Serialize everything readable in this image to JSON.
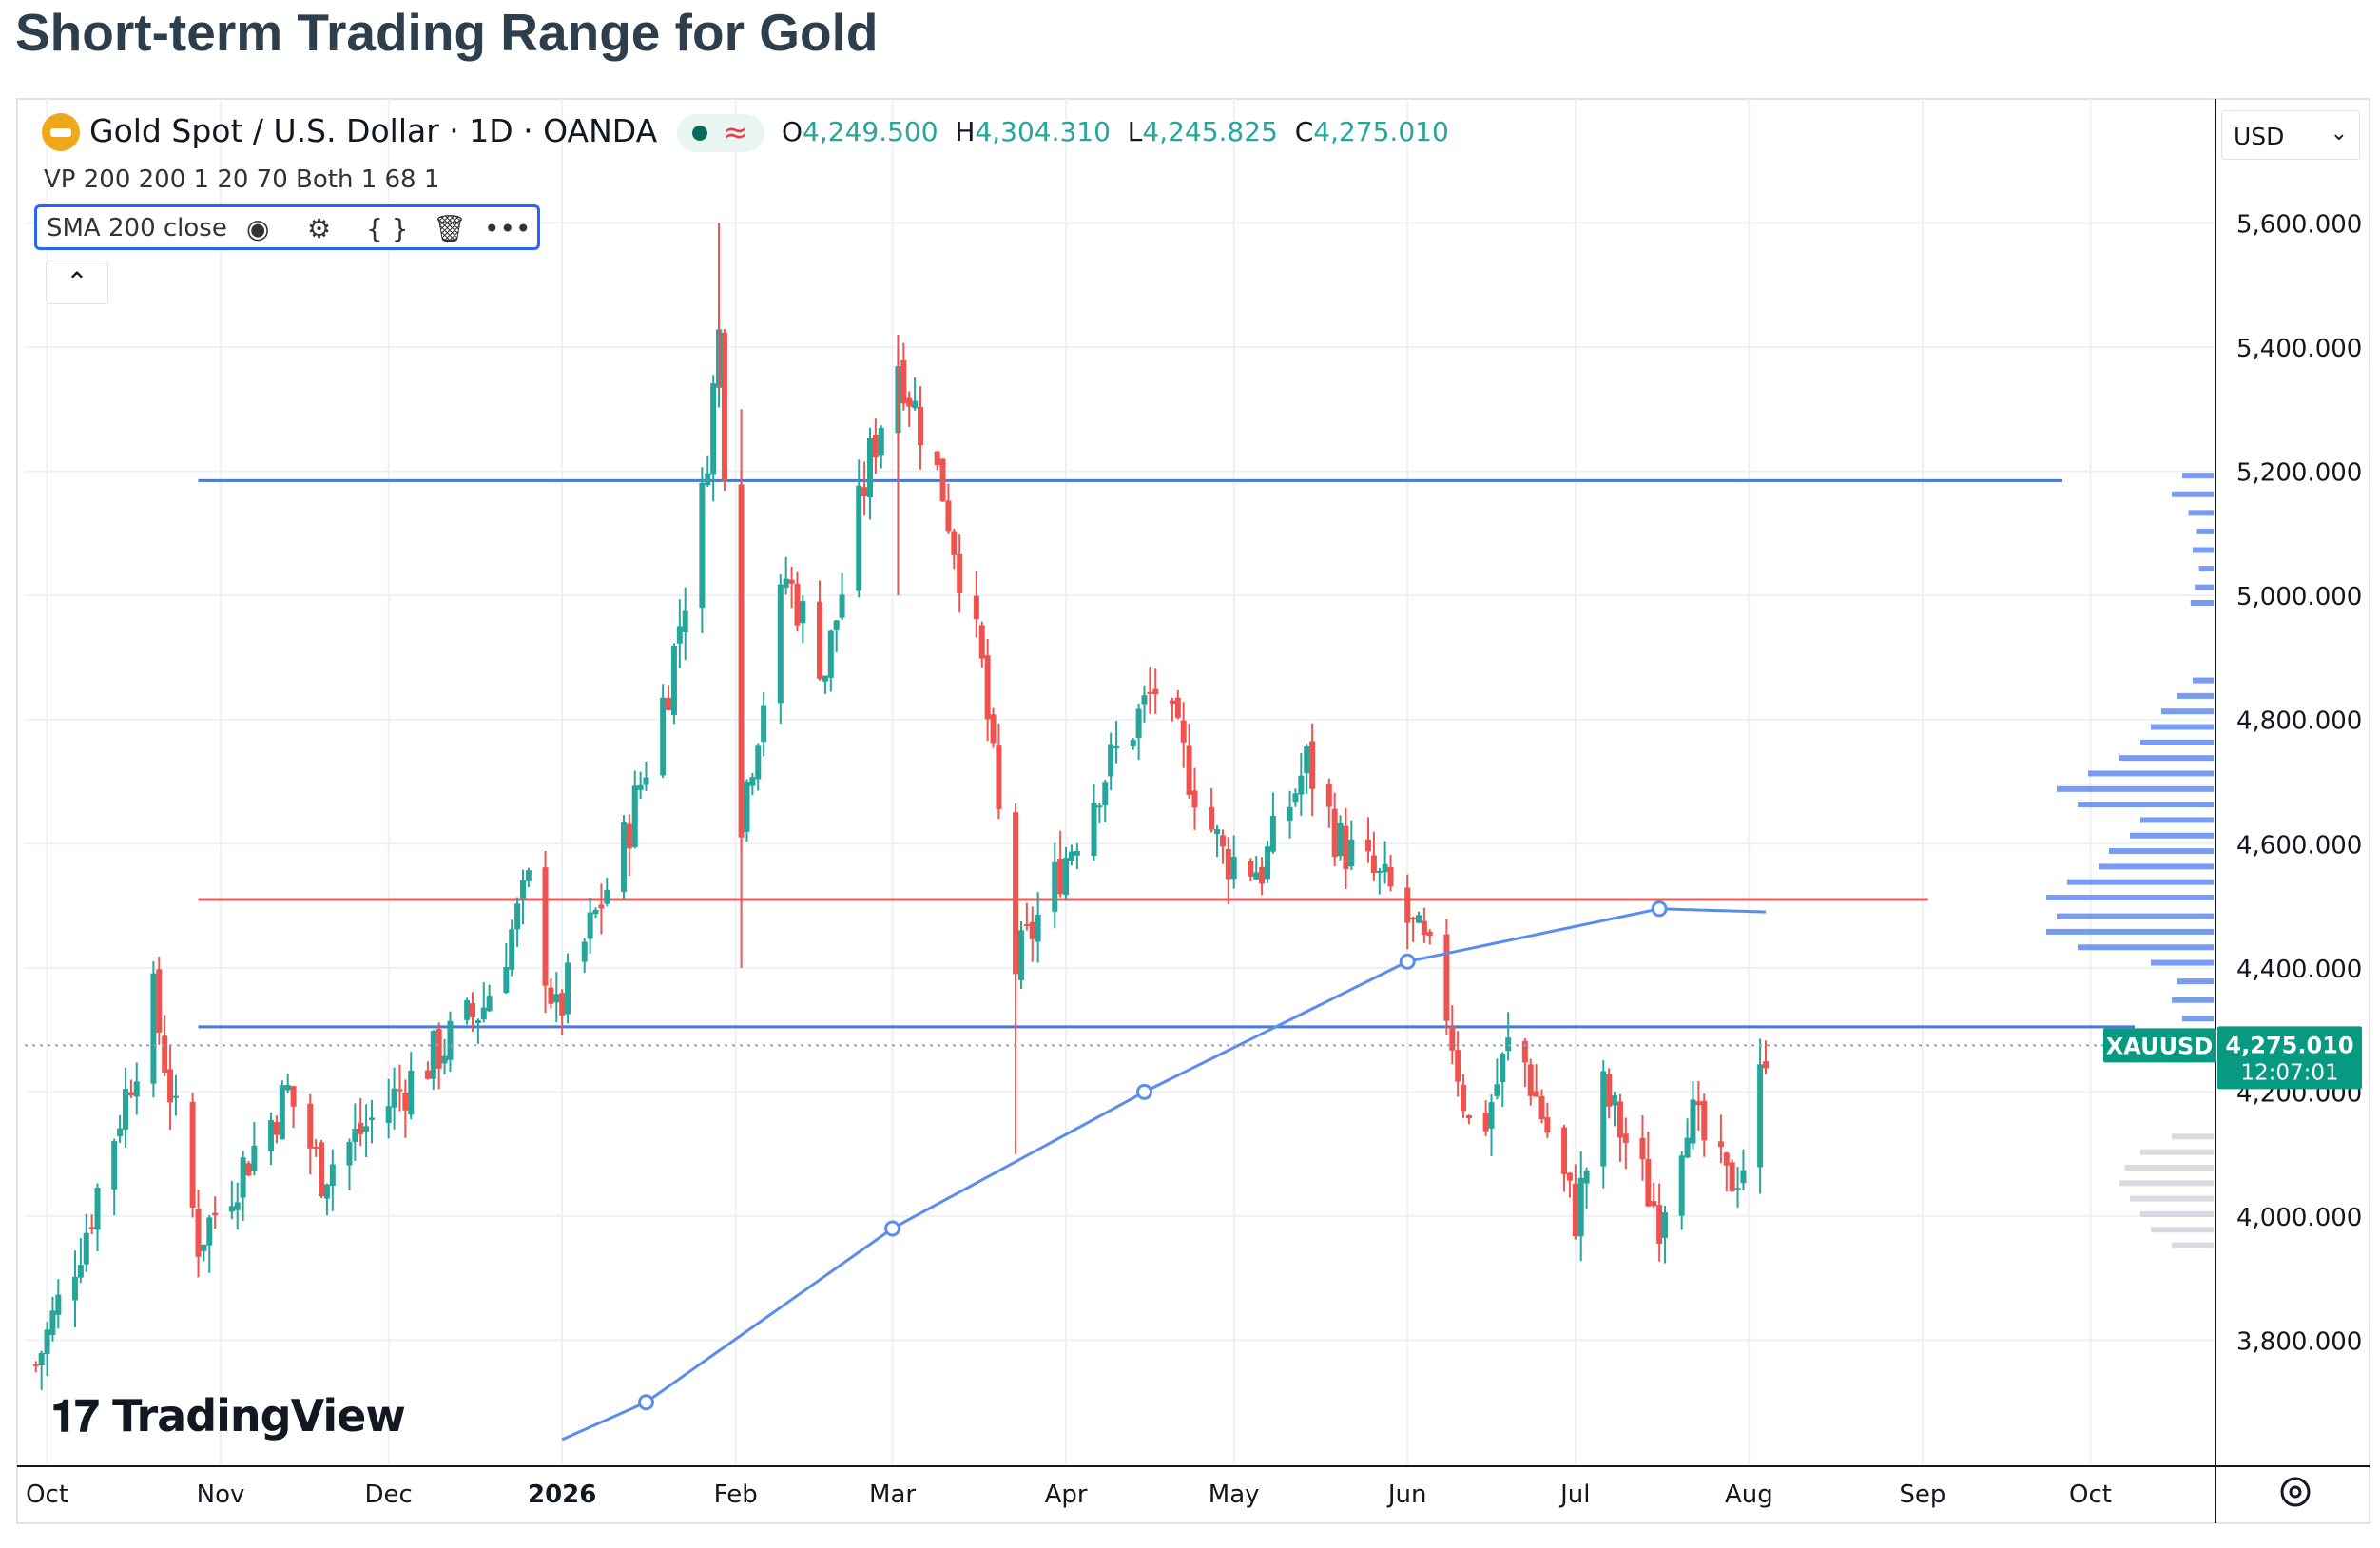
{
  "page": {
    "title": "Short-term Trading Range for Gold"
  },
  "legend": {
    "symbol": "Gold Spot / U.S. Dollar · 1D · OANDA",
    "ohlc": [
      {
        "key": "O",
        "value": "4,249.500"
      },
      {
        "key": "H",
        "value": "4,304.310"
      },
      {
        "key": "L",
        "value": "4,245.825"
      },
      {
        "key": "C",
        "value": "4,275.010"
      }
    ],
    "vp": "VP 200 200 1 20 70 Both 1 68 1",
    "sma": "SMA 200 close"
  },
  "currency": "USD",
  "brand": "TradingView",
  "price_tag": {
    "symbol": "XAUUSD",
    "price": "4,275.010",
    "countdown": "12:07:01"
  },
  "colors": {
    "up": "#26a69a",
    "down": "#ef5350",
    "sma": "#5b8def",
    "level": "#4a78d6",
    "pivot": "#e45b5b",
    "volume_profile": "#4b7bf0"
  },
  "chart_data": {
    "type": "candlestick",
    "title": "Gold Spot / U.S. Dollar · 1D · OANDA",
    "y_ticks": [
      3800,
      4000,
      4200,
      4400,
      4600,
      4800,
      5000,
      5200,
      5400,
      5600
    ],
    "y_tick_labels": [
      "3,800.000",
      "4,000.000",
      "4,200.000",
      "4,400.000",
      "4,600.000",
      "4,800.000",
      "5,000.000",
      "5,200.000",
      "5,400.000",
      "5,600.000"
    ],
    "ylim": [
      3600,
      5800
    ],
    "x_ticks": [
      "Oct",
      "Nov",
      "Dec",
      "2026",
      "Feb",
      "Mar",
      "Apr",
      "May",
      "Jun",
      "Jul",
      "Aug",
      "Sep",
      "Oct"
    ],
    "x_tick_dates": [
      "2025-10-01",
      "2025-11-01",
      "2025-12-01",
      "2026-01-01",
      "2026-02-01",
      "2026-03-01",
      "2026-04-01",
      "2026-05-01",
      "2026-06-01",
      "2026-07-01",
      "2026-08-01",
      "2026-09-01",
      "2026-10-01"
    ],
    "xlim": [
      "2025-09-27",
      "2026-10-23"
    ],
    "candles_approx": [
      [
        "2025-09-29",
        3760
      ],
      [
        "2025-10-08",
        3980
      ],
      [
        "2025-10-20",
        4350
      ],
      [
        "2025-10-28",
        3960
      ],
      [
        "2025-11-13",
        4200
      ],
      [
        "2025-11-19",
        4070
      ],
      [
        "2025-12-05",
        4220
      ],
      [
        "2025-12-18",
        4340
      ],
      [
        "2025-12-26",
        4530
      ],
      [
        "2025-12-31",
        4320
      ],
      [
        "2026-01-12",
        4600
      ],
      [
        "2026-01-20",
        4860
      ],
      [
        "2026-01-26",
        5150
      ],
      [
        "2026-01-29",
        5420
      ],
      [
        "2026-02-02",
        4650
      ],
      [
        "2026-02-10",
        5030
      ],
      [
        "2026-02-17",
        4880
      ],
      [
        "2026-02-25",
        5220
      ],
      [
        "2026-03-02",
        5380
      ],
      [
        "2026-03-10",
        5170
      ],
      [
        "2026-03-17",
        4880
      ],
      [
        "2026-03-23",
        4400
      ],
      [
        "2026-04-07",
        4700
      ],
      [
        "2026-04-17",
        4850
      ],
      [
        "2026-04-29",
        4580
      ],
      [
        "2026-05-06",
        4560
      ],
      [
        "2026-05-14",
        4730
      ],
      [
        "2026-05-20",
        4600
      ],
      [
        "2026-05-29",
        4520
      ],
      [
        "2026-06-07",
        4380
      ],
      [
        "2026-06-13",
        4100
      ],
      [
        "2026-06-20",
        4300
      ],
      [
        "2026-07-01",
        4000
      ],
      [
        "2026-07-06",
        4200
      ],
      [
        "2026-07-16",
        4000
      ],
      [
        "2026-07-21",
        4170
      ],
      [
        "2026-07-28",
        4050
      ],
      [
        "2026-08-01",
        4100
      ],
      [
        "2026-08-04",
        4275
      ]
    ],
    "sma_200": [
      [
        "2026-01-01",
        3640
      ],
      [
        "2026-01-16",
        3700
      ],
      [
        "2026-03-01",
        3980
      ],
      [
        "2026-04-15",
        4200
      ],
      [
        "2026-06-01",
        4410
      ],
      [
        "2026-07-16",
        4495
      ],
      [
        "2026-08-04",
        4490
      ]
    ],
    "horizontal_levels": [
      {
        "name": "resistance",
        "value": 5185
      },
      {
        "name": "pivot",
        "value": 4510
      },
      {
        "name": "support",
        "value": 4305
      }
    ],
    "last_price": 4275.01,
    "grid": true
  }
}
